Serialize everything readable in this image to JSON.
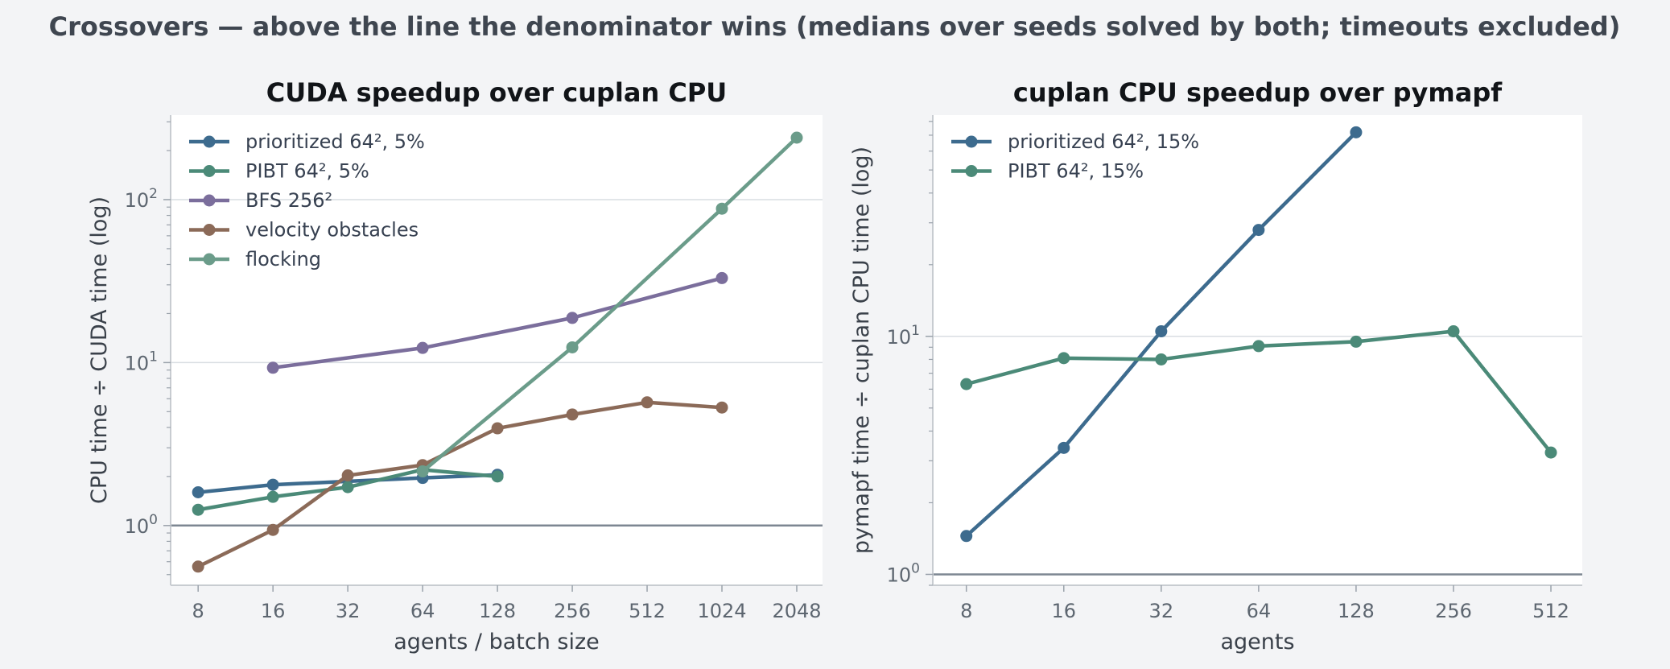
{
  "figure_title": "Crossovers — above the line the denominator wins (medians over seeds solved by both; timeouts excluded)",
  "chart_data": [
    {
      "type": "line",
      "title": "CUDA speedup over cuplan CPU",
      "xlabel": "agents / batch size",
      "ylabel": "CPU time ÷ CUDA time (log)",
      "xscale": "log2",
      "yscale": "log10",
      "xlim": [
        6.2,
        2600
      ],
      "ylim": [
        0.43,
        330
      ],
      "x_ticks": [
        8,
        16,
        32,
        64,
        128,
        256,
        512,
        1024,
        2048
      ],
      "x_tick_labels": [
        "8",
        "16",
        "32",
        "64",
        "128",
        "256",
        "512",
        "1024",
        "2048"
      ],
      "y_ticks": [
        1,
        10,
        100
      ],
      "y_tick_bases": [
        "10",
        "10",
        "10"
      ],
      "y_tick_exps": [
        "0",
        "1",
        "2"
      ],
      "reference_line": 1,
      "legend_position": "top-left",
      "series": [
        {
          "name": "prioritized 64², 5%",
          "color": "#3d6b8e",
          "x": [
            8,
            16,
            64,
            128
          ],
          "y": [
            1.6,
            1.78,
            1.96,
            2.05
          ]
        },
        {
          "name": "PIBT 64², 5%",
          "color": "#4b8a78",
          "x": [
            8,
            16,
            32,
            64,
            128
          ],
          "y": [
            1.25,
            1.5,
            1.72,
            2.2,
            2.0
          ]
        },
        {
          "name": "BFS 256²",
          "color": "#7b6e9c",
          "x": [
            16,
            64,
            256,
            1024
          ],
          "y": [
            9.3,
            12.3,
            18.8,
            33
          ]
        },
        {
          "name": "velocity obstacles",
          "color": "#8b6a58",
          "x": [
            8,
            16,
            32,
            64,
            128,
            256,
            512,
            1024
          ],
          "y": [
            0.56,
            0.94,
            2.03,
            2.35,
            3.95,
            4.8,
            5.7,
            5.3
          ]
        },
        {
          "name": "flocking",
          "color": "#6b9c8a",
          "x": [
            64,
            256,
            1024,
            2048
          ],
          "y": [
            2.15,
            12.4,
            88,
            240
          ]
        }
      ]
    },
    {
      "type": "line",
      "title": "cuplan CPU speedup over pymapf",
      "xlabel": "agents",
      "ylabel": "pymapf time ÷ cuplan CPU time (log)",
      "xscale": "log2",
      "yscale": "log10",
      "xlim": [
        6.3,
        640
      ],
      "ylim": [
        0.9,
        85
      ],
      "x_ticks": [
        8,
        16,
        32,
        64,
        128,
        256,
        512
      ],
      "x_tick_labels": [
        "8",
        "16",
        "32",
        "64",
        "128",
        "256",
        "512"
      ],
      "y_ticks": [
        1,
        10
      ],
      "y_tick_bases": [
        "10",
        "10"
      ],
      "y_tick_exps": [
        "0",
        "1"
      ],
      "reference_line": 1,
      "legend_position": "top-left",
      "series": [
        {
          "name": "prioritized 64², 15%",
          "color": "#3d6b8e",
          "x": [
            8,
            16,
            32,
            64,
            128
          ],
          "y": [
            1.45,
            3.4,
            10.5,
            28,
            72
          ]
        },
        {
          "name": "PIBT 64², 15%",
          "color": "#4b8a78",
          "x": [
            8,
            16,
            32,
            64,
            128,
            256,
            512
          ],
          "y": [
            6.3,
            8.1,
            8.0,
            9.1,
            9.5,
            10.5,
            3.25
          ]
        }
      ]
    }
  ]
}
